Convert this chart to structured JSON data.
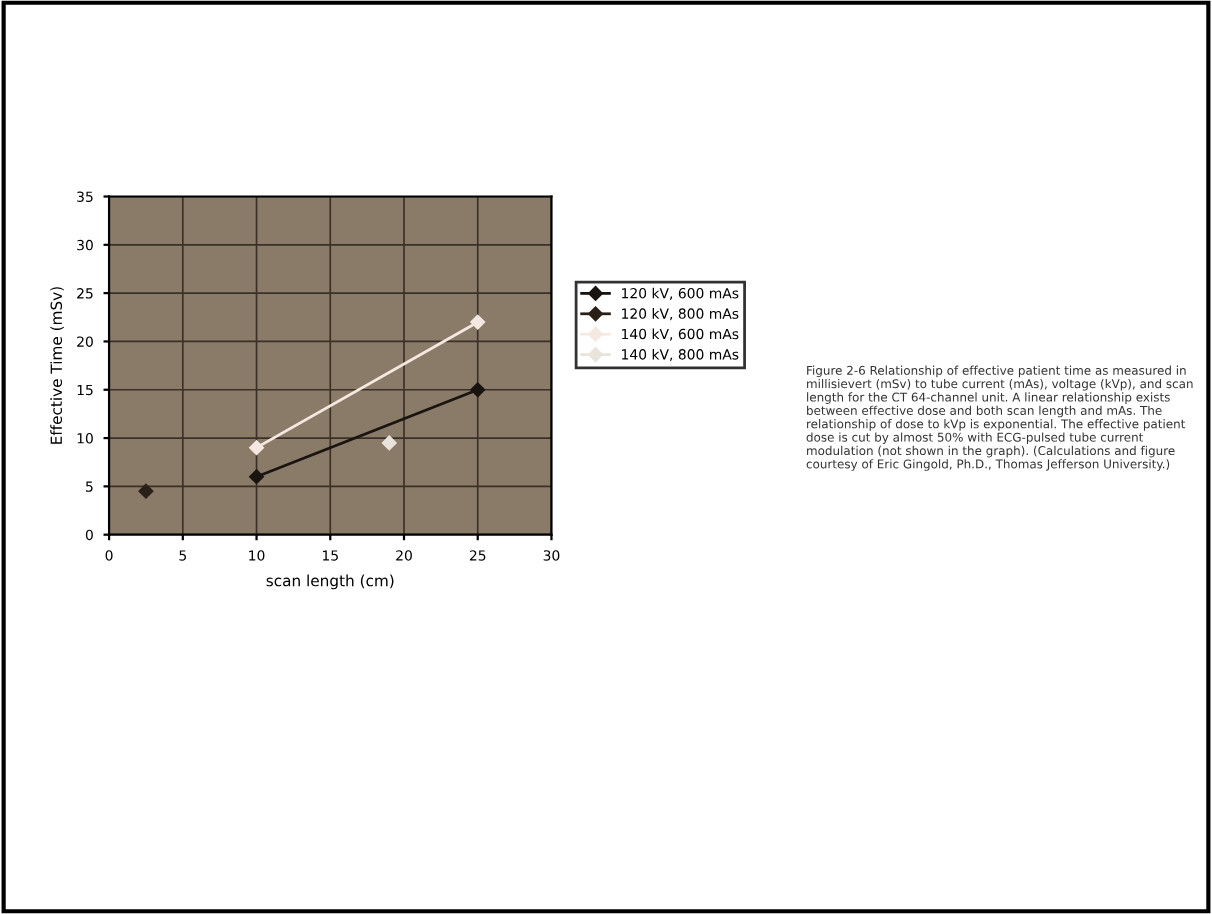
{
  "chart_data": {
    "type": "line",
    "xlabel": "scan length (cm)",
    "ylabel": "Effective Time (mSv)",
    "xlim": [
      0,
      30
    ],
    "xticks": [
      0,
      5,
      10,
      15,
      20,
      25,
      30
    ],
    "ylim": [
      0,
      35
    ],
    "yticks": [
      0,
      5,
      10,
      15,
      20,
      25,
      30,
      35
    ],
    "grid": true,
    "legend": "right",
    "marker": "diamond",
    "series": [
      {
        "name": "120 kV, 600 mAs",
        "color": "#1a1410",
        "x": [
          10,
          25
        ],
        "values": [
          6,
          15
        ]
      },
      {
        "name": "120 kV, 800 mAs",
        "color": "#2a2018",
        "x": [
          2.5
        ],
        "values": [
          4.5
        ]
      },
      {
        "name": "140 kV, 600 mAs",
        "color": "#f4e8e0",
        "x": [
          10,
          25
        ],
        "values": [
          9,
          22
        ]
      },
      {
        "name": "140 kV, 800 mAs",
        "color": "#e8e4dc",
        "x": [
          19
        ],
        "values": [
          9.5
        ]
      }
    ],
    "annotations": [
      "Figure 2-6 Relationship of effective patient time as measured in millisievert (mSv) to tube current (mAs), voltage (kVp), and scan length for the CT 64-channel unit. A linear relationship exists between effective dose and both scan length and mAs. The relationship of dose to kVp is exponential. The effective patient dose is cut by almost 50% with ECG-pulsed tube current modulation (not shown in the graph). (Calculations and figure courtesy of Eric Gingold, Ph.D., Thomas Jefferson University.)"
    ]
  }
}
